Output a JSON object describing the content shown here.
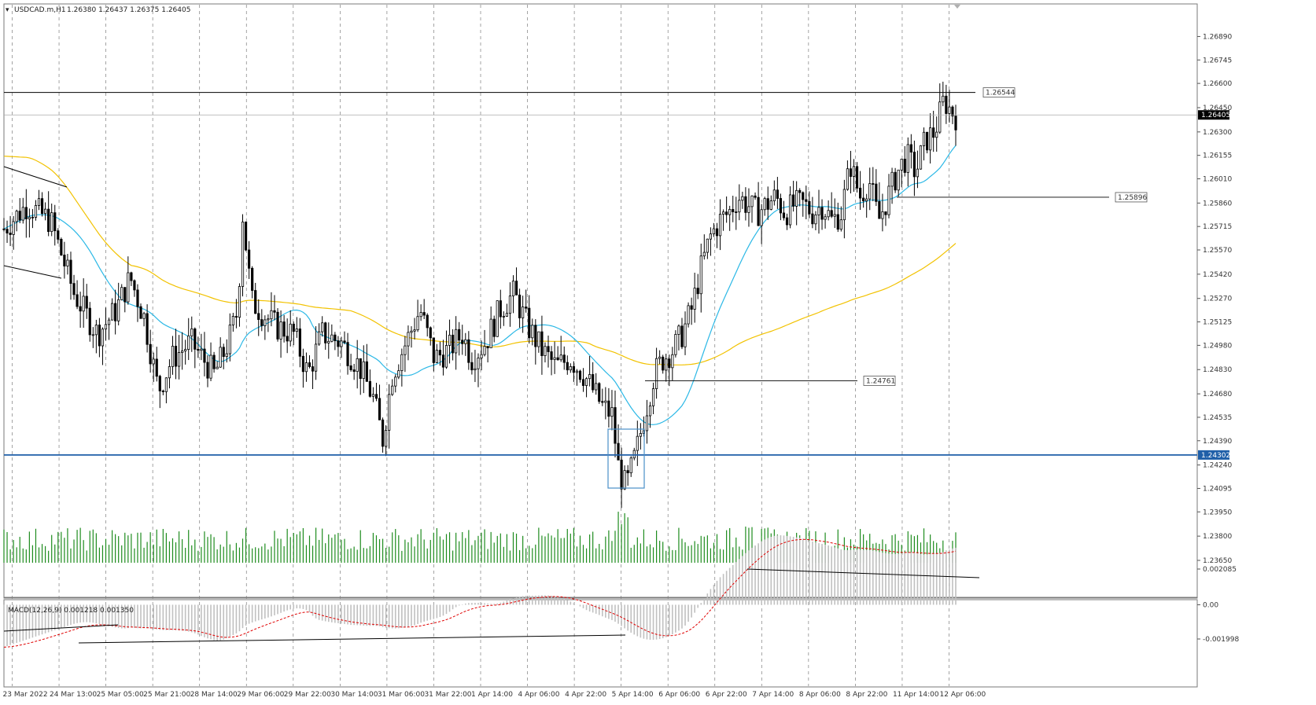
{
  "header": {
    "symbol": "USDCAD.m,H1",
    "ohlc": "1.26380 1.26437 1.26375 1.26405"
  },
  "colors": {
    "candle": "#000000",
    "ma_fast": "#2bb8e6",
    "ma_slow": "#f2c200",
    "volume": "#1e8c1e",
    "support": "#1f5fa8",
    "macd_hist": "#c0c0c0",
    "macd_signal": "#e00000",
    "grid": "#7d7d7d",
    "highlight_box": "#4a90c8"
  },
  "price_axis": {
    "ticks": [
      "1.26890",
      "1.26745",
      "1.26600",
      "1.26450",
      "1.26300",
      "1.26155",
      "1.26010",
      "1.25860",
      "1.25715",
      "1.25570",
      "1.25420",
      "1.25270",
      "1.25125",
      "1.24980",
      "1.24830",
      "1.24680",
      "1.24535",
      "1.24390",
      "1.24240",
      "1.24095",
      "1.23950",
      "1.23800",
      "1.23650"
    ],
    "current_label": "1.26405",
    "support_label": "1.24302"
  },
  "time_axis": {
    "labels": [
      "23 Mar 2022",
      "24 Mar 13:00",
      "25 Mar 05:00",
      "25 Mar 21:00",
      "28 Mar 14:00",
      "29 Mar 06:00",
      "29 Mar 22:00",
      "30 Mar 14:00",
      "31 Mar 06:00",
      "31 Mar 22:00",
      "1 Apr 14:00",
      "4 Apr 06:00",
      "4 Apr 22:00",
      "5 Apr 14:00",
      "6 Apr 06:00",
      "6 Apr 22:00",
      "7 Apr 14:00",
      "8 Apr 06:00",
      "8 Apr 22:00",
      "11 Apr 14:00",
      "12 Apr 06:00"
    ]
  },
  "annotations": {
    "resistance": "1.26544",
    "level_mid": "1.25896",
    "level_low": "1.24761"
  },
  "macd": {
    "label": "MACD(12,26,9) 0.001218 0.001350",
    "ticks": [
      "0.002085",
      "0.00",
      "-0.001998"
    ]
  },
  "chart_data": {
    "type": "candlestick",
    "symbol": "USDCAD.m",
    "timeframe": "H1",
    "ylim": [
      1.2365,
      1.2697
    ],
    "current_price": 1.26405,
    "support_level": 1.24302,
    "horizontal_levels": [
      1.26544,
      1.25896,
      1.24761,
      1.24302
    ],
    "price_path": [
      [
        23.0,
        1.257
      ],
      [
        23.5,
        1.2585
      ],
      [
        24.0,
        1.2575
      ],
      [
        24.5,
        1.253
      ],
      [
        25.0,
        1.2505
      ],
      [
        25.4,
        1.252
      ],
      [
        25.7,
        1.254
      ],
      [
        26.0,
        1.2515
      ],
      [
        26.3,
        1.247
      ],
      [
        26.6,
        1.249
      ],
      [
        27.0,
        1.25
      ],
      [
        27.5,
        1.248
      ],
      [
        27.8,
        1.25
      ],
      [
        28.0,
        1.252
      ],
      [
        28.1,
        1.258
      ],
      [
        28.3,
        1.2525
      ],
      [
        28.8,
        1.251
      ],
      [
        29.2,
        1.2505
      ],
      [
        29.5,
        1.248
      ],
      [
        29.8,
        1.2505
      ],
      [
        30.2,
        1.25
      ],
      [
        30.6,
        1.2485
      ],
      [
        30.9,
        1.2465
      ],
      [
        31.1,
        1.244
      ],
      [
        31.3,
        1.248
      ],
      [
        31.6,
        1.25
      ],
      [
        31.9,
        1.252
      ],
      [
        32.2,
        1.249
      ],
      [
        32.5,
        1.2495
      ],
      [
        32.8,
        1.2505
      ],
      [
        33.0,
        1.249
      ],
      [
        33.3,
        1.25
      ],
      [
        33.6,
        1.252
      ],
      [
        33.9,
        1.253
      ],
      [
        34.2,
        1.251
      ],
      [
        34.5,
        1.2495
      ],
      [
        34.8,
        1.2485
      ],
      [
        35.1,
        1.249
      ],
      [
        35.4,
        1.248
      ],
      [
        35.6,
        1.247
      ],
      [
        35.8,
        1.246
      ],
      [
        36.0,
        1.2455
      ],
      [
        36.15,
        1.242
      ],
      [
        36.3,
        1.241
      ],
      [
        36.5,
        1.243
      ],
      [
        36.7,
        1.2455
      ],
      [
        36.9,
        1.248
      ],
      [
        37.1,
        1.249
      ],
      [
        37.3,
        1.2495
      ],
      [
        37.5,
        1.2505
      ],
      [
        37.7,
        1.252
      ],
      [
        37.9,
        1.2545
      ],
      [
        38.1,
        1.2565
      ],
      [
        38.3,
        1.2575
      ],
      [
        38.5,
        1.258
      ],
      [
        38.7,
        1.259
      ],
      [
        38.9,
        1.2585
      ],
      [
        39.1,
        1.258
      ],
      [
        39.3,
        1.2585
      ],
      [
        39.5,
        1.259
      ],
      [
        39.7,
        1.258
      ],
      [
        39.9,
        1.2585
      ],
      [
        40.1,
        1.2585
      ],
      [
        40.3,
        1.258
      ],
      [
        40.5,
        1.2585
      ],
      [
        40.7,
        1.2575
      ],
      [
        40.9,
        1.258
      ],
      [
        41.1,
        1.261
      ],
      [
        41.3,
        1.259
      ],
      [
        41.5,
        1.26
      ],
      [
        41.7,
        1.2575
      ],
      [
        41.9,
        1.259
      ],
      [
        42.1,
        1.2605
      ],
      [
        42.3,
        1.2615
      ],
      [
        42.5,
        1.2605
      ],
      [
        42.7,
        1.2625
      ],
      [
        42.9,
        1.263
      ],
      [
        43.1,
        1.265
      ],
      [
        43.2,
        1.2645
      ],
      [
        43.35,
        1.264
      ]
    ],
    "volume_profile": "green histogram, spikes near 5 Apr 14:00 and 6 Apr 22:00",
    "macd": {
      "fast": 12,
      "slow": 26,
      "signal": 9,
      "main": 0.001218,
      "signal_value": 0.00135
    },
    "x_range_label": [
      "23 Mar 2022",
      "12 Apr 06:00"
    ]
  }
}
